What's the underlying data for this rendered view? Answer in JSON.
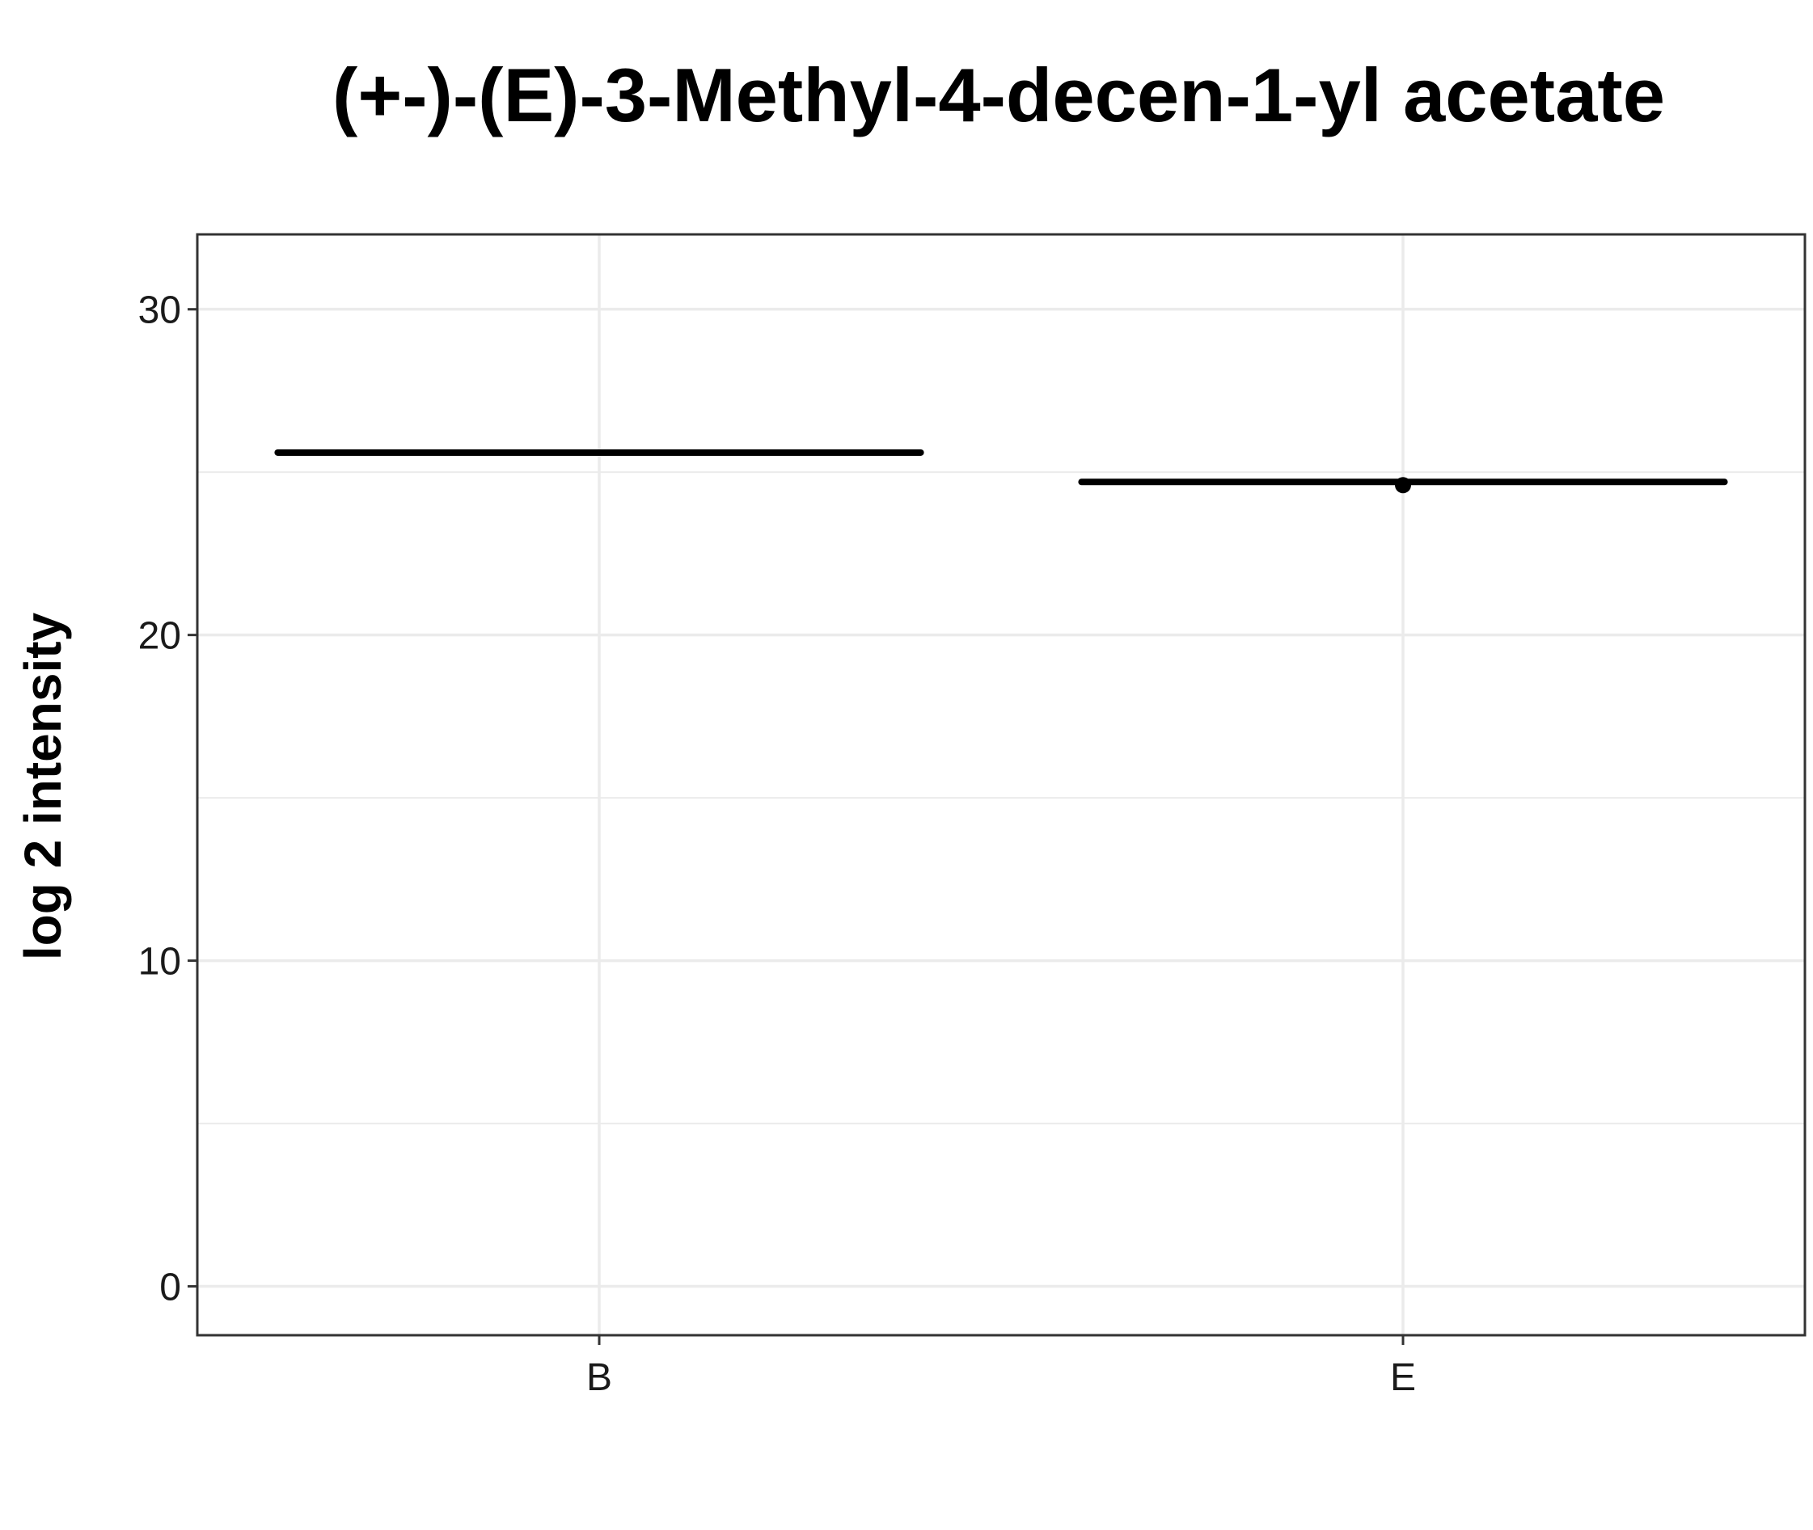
{
  "chart_data": {
    "type": "box",
    "title": "(+-)-(E)-3-Methyl-4-decen-1-yl acetate",
    "xlabel": "",
    "ylabel": "log 2 intensity",
    "categories": [
      "B",
      "E"
    ],
    "y_ticks": [
      0,
      10,
      20,
      30
    ],
    "ylim": [
      -1.5,
      32.3
    ],
    "grid": true,
    "series": [
      {
        "values": [
          {
            "category": "B",
            "median": 25.6,
            "q1": 25.6,
            "q3": 25.6,
            "whisker_low": 25.6,
            "whisker_high": 25.6,
            "outliers": []
          },
          {
            "category": "E",
            "median": 24.7,
            "q1": 24.7,
            "q3": 24.7,
            "whisker_low": 24.7,
            "whisker_high": 24.7,
            "outliers": [
              24.6
            ]
          }
        ]
      }
    ]
  }
}
